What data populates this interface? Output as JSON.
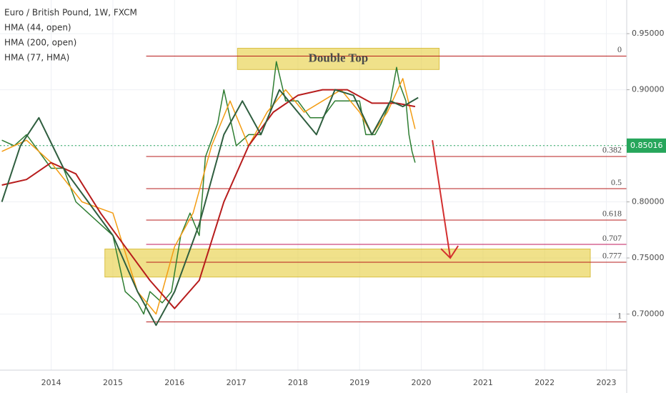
{
  "chart_data": {
    "type": "line",
    "title": "Euro / British Pound, 1W, FXCM",
    "xlim": [
      2013.17,
      2023.33
    ],
    "ylim": [
      0.65,
      0.98
    ],
    "xticks": [
      2014,
      2015,
      2016,
      2017,
      2018,
      2019,
      2020,
      2021,
      2022,
      2023
    ],
    "yticks": [
      {
        "value": 0.7,
        "label": "0.70000"
      },
      {
        "value": 0.75,
        "label": "0.75000"
      },
      {
        "value": 0.8,
        "label": "0.80000"
      },
      {
        "value": 0.85,
        "label": "0.85000"
      },
      {
        "value": 0.9,
        "label": "0.90000"
      },
      {
        "value": 0.95,
        "label": "0.95000"
      }
    ],
    "grid": true,
    "last_price": 0.85016,
    "last_price_color": "#26a65b",
    "series": [
      {
        "name": "EUR/GBP",
        "color": "#2e7d32",
        "width": 1.5,
        "x": [
          2013.2,
          2013.4,
          2013.6,
          2013.8,
          2014.0,
          2014.2,
          2014.4,
          2014.6,
          2014.8,
          2015.0,
          2015.2,
          2015.4,
          2015.5,
          2015.6,
          2015.8,
          2015.95,
          2016.1,
          2016.25,
          2016.4,
          2016.5,
          2016.7,
          2016.8,
          2017.0,
          2017.2,
          2017.4,
          2017.55,
          2017.65,
          2017.8,
          2018.0,
          2018.2,
          2018.4,
          2018.6,
          2018.8,
          2019.0,
          2019.1,
          2019.25,
          2019.35,
          2019.5,
          2019.6,
          2019.65,
          2019.75,
          2019.8,
          2019.85,
          2019.9
        ],
        "values": [
          0.855,
          0.85,
          0.86,
          0.845,
          0.83,
          0.83,
          0.8,
          0.79,
          0.78,
          0.77,
          0.72,
          0.71,
          0.7,
          0.72,
          0.71,
          0.72,
          0.77,
          0.79,
          0.77,
          0.84,
          0.87,
          0.9,
          0.85,
          0.86,
          0.86,
          0.88,
          0.925,
          0.89,
          0.89,
          0.875,
          0.875,
          0.89,
          0.89,
          0.89,
          0.86,
          0.86,
          0.87,
          0.89,
          0.92,
          0.905,
          0.89,
          0.86,
          0.845,
          0.835
        ]
      },
      {
        "name": "HMA (44, open)",
        "color": "#f39c12",
        "width": 1.5,
        "x": [
          2013.2,
          2013.6,
          2014.0,
          2014.5,
          2015.0,
          2015.4,
          2015.7,
          2016.0,
          2016.3,
          2016.6,
          2016.9,
          2017.2,
          2017.5,
          2017.8,
          2018.1,
          2018.4,
          2018.7,
          2019.0,
          2019.2,
          2019.45,
          2019.7,
          2019.9
        ],
        "values": [
          0.845,
          0.855,
          0.835,
          0.8,
          0.79,
          0.72,
          0.7,
          0.76,
          0.79,
          0.85,
          0.89,
          0.85,
          0.88,
          0.9,
          0.88,
          0.89,
          0.9,
          0.88,
          0.86,
          0.88,
          0.91,
          0.865
        ]
      },
      {
        "name": "HMA (200, open)",
        "color": "#b71c1c",
        "width": 2,
        "x": [
          2013.2,
          2013.6,
          2014.0,
          2014.4,
          2014.8,
          2015.2,
          2015.6,
          2016.0,
          2016.4,
          2016.8,
          2017.2,
          2017.6,
          2018.0,
          2018.4,
          2018.8,
          2019.2,
          2019.6,
          2019.9
        ],
        "values": [
          0.815,
          0.82,
          0.835,
          0.825,
          0.79,
          0.76,
          0.73,
          0.705,
          0.73,
          0.8,
          0.85,
          0.88,
          0.895,
          0.9,
          0.9,
          0.888,
          0.888,
          0.885
        ]
      },
      {
        "name": "HMA (77, HMA)",
        "color": "#2f5e3f",
        "width": 2,
        "x": [
          2013.2,
          2013.5,
          2013.8,
          2014.2,
          2014.6,
          2015.0,
          2015.4,
          2015.7,
          2016.0,
          2016.4,
          2016.8,
          2017.1,
          2017.4,
          2017.7,
          2018.0,
          2018.3,
          2018.6,
          2018.9,
          2019.2,
          2019.5,
          2019.7,
          2019.95
        ],
        "values": [
          0.8,
          0.85,
          0.875,
          0.83,
          0.8,
          0.77,
          0.72,
          0.69,
          0.72,
          0.78,
          0.86,
          0.89,
          0.86,
          0.9,
          0.88,
          0.86,
          0.9,
          0.895,
          0.86,
          0.89,
          0.885,
          0.893
        ]
      }
    ],
    "fib_levels": [
      {
        "ratio": 0,
        "price": 0.93,
        "color": "#b71c1c"
      },
      {
        "ratio": 0.382,
        "price": 0.8405,
        "color": "#b71c1c"
      },
      {
        "ratio": 0.5,
        "price": 0.8118,
        "color": "#b71c1c"
      },
      {
        "ratio": 0.618,
        "price": 0.7838,
        "color": "#b71c1c"
      },
      {
        "ratio": 0.707,
        "price": 0.7621,
        "color": "#c2185b"
      },
      {
        "ratio": 0.777,
        "price": 0.7462,
        "color": "#b71c1c"
      },
      {
        "ratio": 1,
        "price": 0.693,
        "color": "#b71c1c"
      }
    ],
    "fib_start": 2015.54,
    "annotations": {
      "double_top": {
        "text": "Double Top",
        "x": [
          2017.02,
          2020.29
        ],
        "y": [
          0.918,
          0.937
        ]
      },
      "target_zone": {
        "x": [
          2014.87,
          2022.74
        ],
        "y": [
          0.733,
          0.758
        ]
      },
      "arrow": {
        "x": [
          2020.18,
          2020.47
        ],
        "y": [
          0.855,
          0.75
        ]
      }
    }
  }
}
